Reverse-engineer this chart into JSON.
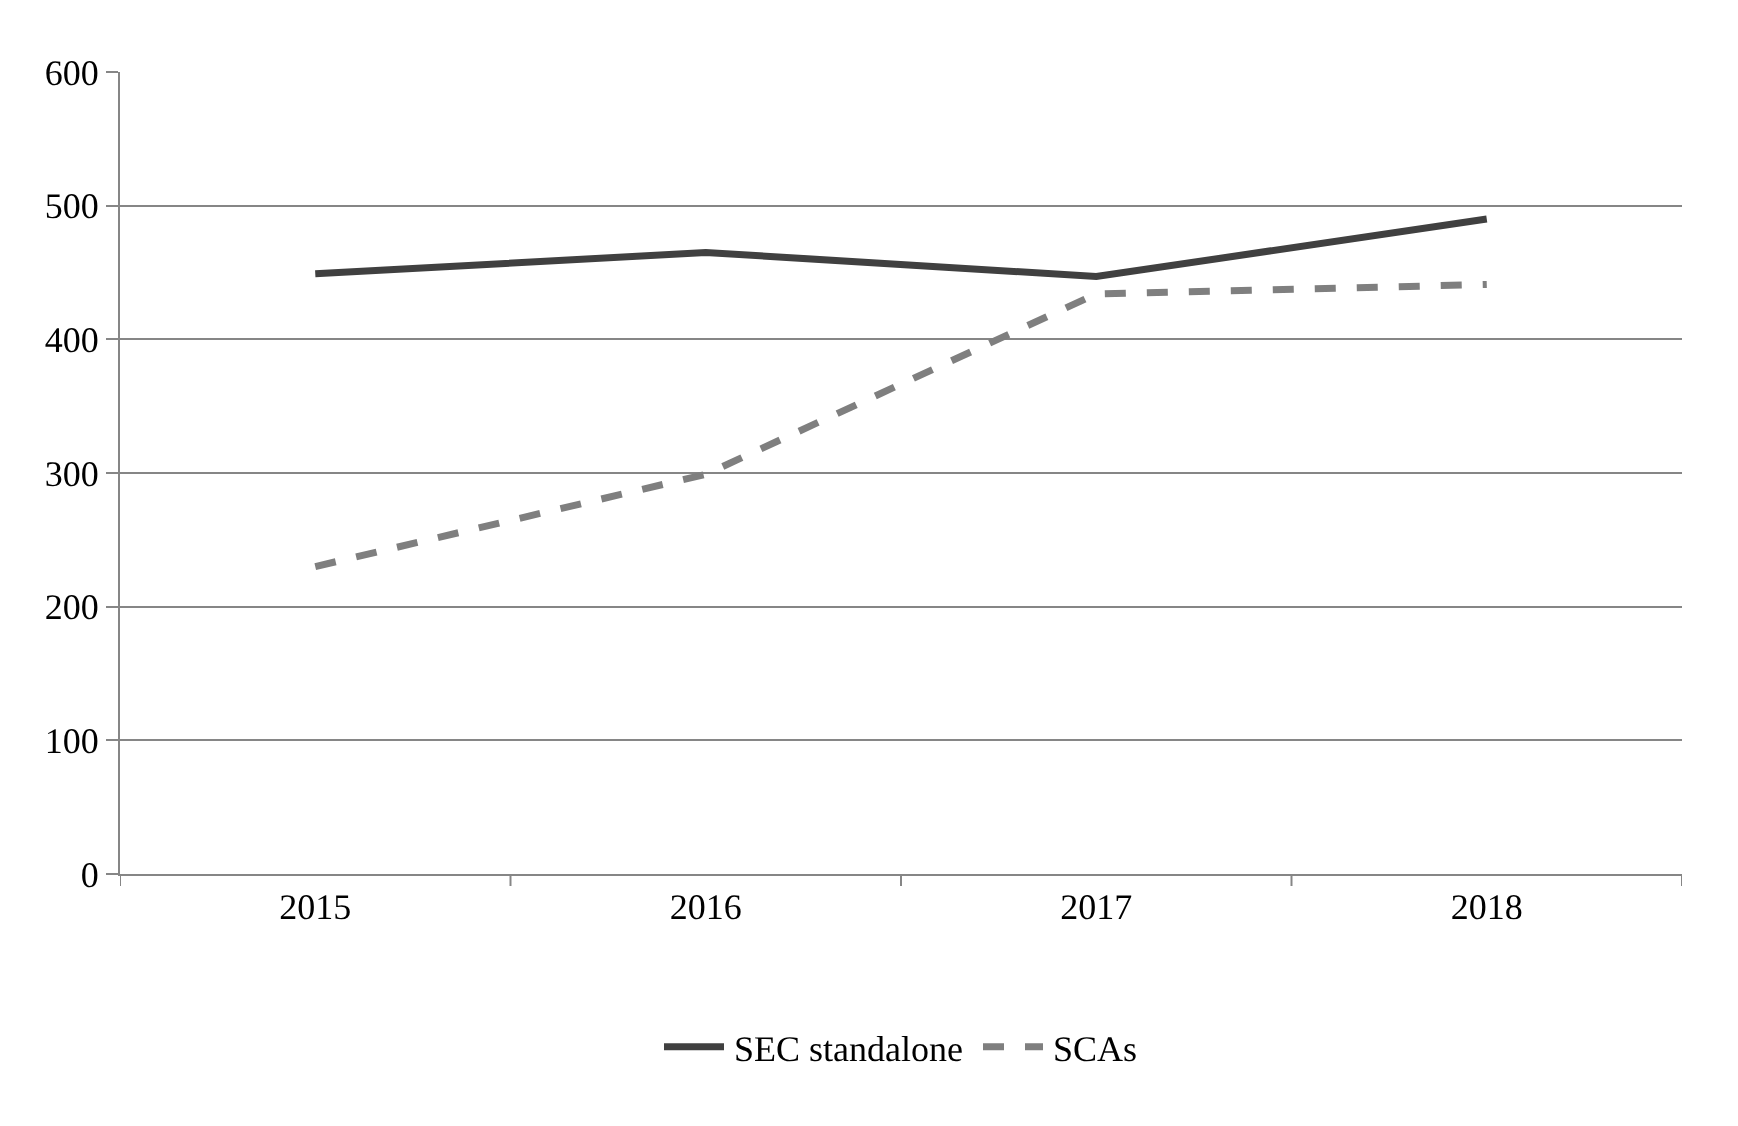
{
  "chart_data": {
    "type": "line",
    "categories": [
      "2015",
      "2016",
      "2017",
      "2018"
    ],
    "series": [
      {
        "name": "SEC standalone",
        "color": "#404040",
        "values": [
          449,
          465,
          447,
          490
        ],
        "line_style": "solid"
      },
      {
        "name": "SCAs",
        "color": "#7f7f7f",
        "values": [
          230,
          299,
          434,
          441
        ],
        "line_style": "dashed"
      }
    ],
    "ylim": [
      0,
      600
    ],
    "yticks": [
      0,
      100,
      200,
      300,
      400,
      500,
      600
    ],
    "grid": "y",
    "legend": "bottom",
    "marker": "none"
  }
}
